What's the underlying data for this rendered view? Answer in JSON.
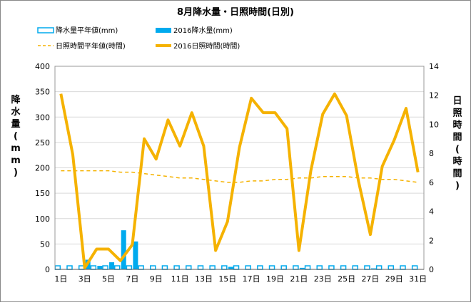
{
  "chart_data": {
    "type": "bar",
    "title": "8月降水量・日照時間(日別)",
    "categories": [
      "1日",
      "2日",
      "3日",
      "4日",
      "5日",
      "6日",
      "7日",
      "8日",
      "9日",
      "10日",
      "11日",
      "12日",
      "13日",
      "14日",
      "15日",
      "16日",
      "17日",
      "18日",
      "19日",
      "20日",
      "21日",
      "22日",
      "23日",
      "24日",
      "25日",
      "26日",
      "27日",
      "28日",
      "29日",
      "30日",
      "31日"
    ],
    "x_tick_labels": [
      "1日",
      "3日",
      "5日",
      "7日",
      "9日",
      "11日",
      "13日",
      "15日",
      "17日",
      "19日",
      "21日",
      "23日",
      "25日",
      "27日",
      "29日",
      "31日"
    ],
    "y_left": {
      "label": "降水量(mm)",
      "ticks": [
        "0",
        "50",
        "100",
        "150",
        "200",
        "250",
        "300",
        "350",
        "400"
      ],
      "range": [
        0,
        400
      ]
    },
    "y_right": {
      "label": "日照時間(時間)",
      "ticks": [
        "0",
        "2",
        "4",
        "6",
        "8",
        "10",
        "12",
        "14"
      ],
      "range": [
        0,
        14
      ]
    },
    "legend": [
      {
        "name": "降水量平年値(mm)",
        "style": "hollow-bar",
        "color": "#00aaee"
      },
      {
        "name": "2016降水量(mm)",
        "style": "bar",
        "color": "#00aaee"
      },
      {
        "name": "日照時間平年値(時間)",
        "style": "dashed-line",
        "color": "#f5b200"
      },
      {
        "name": "2016日照時間(時間)",
        "style": "line",
        "color": "#f5b200"
      }
    ],
    "series": [
      {
        "name": "降水量平年値(mm)",
        "axis": "left",
        "values": [
          7,
          7,
          7,
          7,
          7,
          7,
          7,
          7,
          7,
          7,
          7,
          7,
          7,
          7,
          7,
          7,
          7,
          7,
          7,
          7,
          7,
          7,
          7,
          7,
          7,
          7,
          7,
          7,
          7,
          7,
          7
        ]
      },
      {
        "name": "2016降水量(mm)",
        "axis": "left",
        "values": [
          0,
          0,
          19,
          7,
          14,
          77,
          55,
          0,
          0,
          0,
          0,
          0,
          0,
          0,
          5,
          0,
          0,
          0,
          0,
          0,
          3,
          0,
          0,
          0,
          0,
          0,
          2,
          0,
          0,
          0,
          0
        ]
      },
      {
        "name": "日照時間平年値(時間)",
        "axis": "right",
        "values": [
          6.8,
          6.8,
          6.8,
          6.8,
          6.8,
          6.7,
          6.7,
          6.6,
          6.5,
          6.4,
          6.3,
          6.3,
          6.2,
          6.1,
          6.0,
          6.0,
          6.1,
          6.1,
          6.2,
          6.2,
          6.3,
          6.3,
          6.4,
          6.4,
          6.4,
          6.3,
          6.3,
          6.2,
          6.2,
          6.1,
          6.0
        ]
      },
      {
        "name": "2016日照時間(時間)",
        "axis": "right",
        "values": [
          12.1,
          7.9,
          0.1,
          1.4,
          1.4,
          0.6,
          1.7,
          9.0,
          7.6,
          10.3,
          8.5,
          10.8,
          8.5,
          1.3,
          3.3,
          8.4,
          11.8,
          10.8,
          10.8,
          9.7,
          1.3,
          6.8,
          10.7,
          12.1,
          10.6,
          6.1,
          2.4,
          7.1,
          8.9,
          11.1,
          6.7
        ]
      }
    ]
  }
}
